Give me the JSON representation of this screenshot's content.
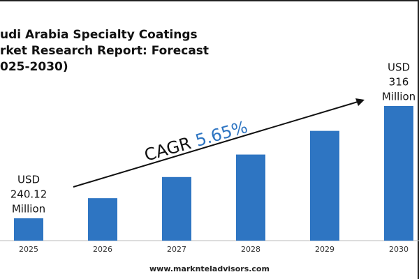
{
  "chart_data": {
    "type": "bar",
    "title_lines": [
      "udi Arabia Specialty Coatings",
      "rket Research Report: Forecast",
      "025-2030)"
    ],
    "categories": [
      "2025",
      "2026",
      "2027",
      "2028",
      "2029",
      "2030"
    ],
    "values": [
      240.12,
      253.7,
      268.0,
      283.2,
      299.2,
      316
    ],
    "value_labels": [
      [
        "USD",
        "240.12",
        "Million"
      ],
      null,
      null,
      null,
      null,
      [
        "USD",
        "316",
        "Million"
      ]
    ],
    "color": "#2e75c2",
    "ylim": [
      225,
      316
    ],
    "annotation": {
      "label": "CAGR",
      "value": "5.65%"
    },
    "footer": "www.marknteladvisors.com"
  }
}
